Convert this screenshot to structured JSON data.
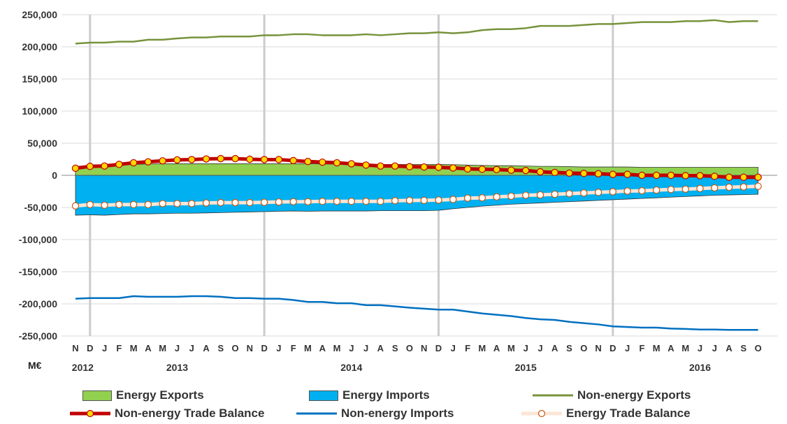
{
  "chart_data": {
    "type": "area",
    "y_unit": "M€",
    "ylim": [
      -250000,
      250000
    ],
    "yticks": [
      "250,000",
      "200,000",
      "150,000",
      "100,000",
      "50,000",
      "0",
      "-50,000",
      "-100,000",
      "-150,000",
      "-200,000",
      "-250,000"
    ],
    "month_labels": [
      "N",
      "D",
      "J",
      "F",
      "M",
      "A",
      "M",
      "J",
      "J",
      "A",
      "S",
      "O",
      "N",
      "D",
      "J",
      "F",
      "M",
      "A",
      "M",
      "J",
      "J",
      "A",
      "S",
      "O",
      "N",
      "D",
      "J",
      "F",
      "M",
      "A",
      "M",
      "J",
      "J",
      "A",
      "S",
      "O",
      "N",
      "D",
      "J",
      "F",
      "M",
      "A",
      "M",
      "J",
      "J",
      "A",
      "S",
      "O"
    ],
    "year_labels": [
      {
        "label": "2012",
        "month_index": 0.5
      },
      {
        "label": "2013",
        "month_index": 7
      },
      {
        "label": "2014",
        "month_index": 19
      },
      {
        "label": "2015",
        "month_index": 31
      },
      {
        "label": "2016",
        "month_index": 43
      }
    ],
    "year_separators_after_index": [
      1,
      13,
      25,
      37
    ],
    "grid": true,
    "legend_position": "bottom",
    "series": [
      {
        "name": "Energy Exports",
        "kind": "area",
        "color": "#92D050",
        "values": [
          14000,
          15000,
          15500,
          16000,
          17000,
          17500,
          18000,
          18000,
          18000,
          18000,
          18000,
          18000,
          18000,
          18000,
          18000,
          18000,
          18000,
          17500,
          17500,
          17500,
          17000,
          17000,
          17000,
          17000,
          17000,
          17000,
          16500,
          16000,
          15500,
          15000,
          15000,
          14500,
          14000,
          14000,
          13500,
          13000,
          13000,
          13000,
          13000,
          12500,
          12500,
          12500,
          12500,
          12500,
          12500,
          12500,
          12500,
          12500
        ]
      },
      {
        "name": "Energy Imports",
        "kind": "area",
        "color": "#00B0F0",
        "values": [
          -62000,
          -61500,
          -62000,
          -61000,
          -60000,
          -60000,
          -59500,
          -59000,
          -59000,
          -58500,
          -58000,
          -57500,
          -57000,
          -56500,
          -56000,
          -55500,
          -56000,
          -55500,
          -55500,
          -55500,
          -55500,
          -55000,
          -55000,
          -55000,
          -55000,
          -54500,
          -52000,
          -50000,
          -48000,
          -46500,
          -45000,
          -44000,
          -43000,
          -42000,
          -41000,
          -40000,
          -39000,
          -38000,
          -37000,
          -36000,
          -35000,
          -34000,
          -33000,
          -32000,
          -31000,
          -30500,
          -30000,
          -29500
        ]
      },
      {
        "name": "Non-energy Exports",
        "kind": "line",
        "color": "#77933C",
        "values": [
          205000,
          206500,
          206500,
          208000,
          208000,
          211000,
          211000,
          213000,
          214500,
          214500,
          216000,
          216000,
          216000,
          218000,
          218000,
          219500,
          219500,
          218000,
          218000,
          218000,
          219500,
          218000,
          219500,
          221000,
          221000,
          222500,
          221000,
          222500,
          226000,
          227500,
          227500,
          229000,
          232500,
          232500,
          232500,
          234000,
          235500,
          235500,
          237000,
          238500,
          238500,
          238500,
          240000,
          240000,
          241500,
          238500,
          240000,
          240000
        ]
      },
      {
        "name": "Non-energy Imports",
        "kind": "line",
        "color": "#0070C0",
        "values": [
          -192000,
          -191000,
          -191000,
          -191000,
          -188000,
          -189000,
          -189000,
          -189000,
          -188000,
          -188000,
          -189000,
          -191000,
          -191000,
          -192000,
          -192000,
          -194000,
          -197000,
          -197000,
          -199000,
          -199000,
          -202000,
          -202000,
          -204000,
          -206000,
          -207500,
          -209000,
          -209000,
          -212000,
          -215000,
          -217000,
          -219000,
          -222000,
          -224000,
          -225000,
          -228000,
          -230000,
          -232000,
          -235000,
          -236000,
          -237000,
          -237000,
          -238500,
          -239000,
          -240000,
          -240000,
          -240500,
          -240500,
          -240500
        ]
      },
      {
        "name": "Non-energy Trade Balance",
        "kind": "line-marker",
        "color": "#C00000",
        "marker_fill": "#FFD700",
        "values": [
          11000,
          14000,
          14500,
          17000,
          19500,
          21000,
          22500,
          24000,
          24500,
          25500,
          26000,
          26000,
          25000,
          24500,
          24500,
          23000,
          21500,
          20500,
          19500,
          18000,
          16000,
          14500,
          14500,
          13500,
          13000,
          12500,
          11500,
          10000,
          9500,
          9000,
          8000,
          7500,
          5500,
          4500,
          3500,
          3000,
          2500,
          1500,
          1500,
          0,
          0,
          0,
          -500,
          -500,
          -1500,
          -3000,
          -3000,
          -3000
        ]
      },
      {
        "name": "Energy Trade Balance",
        "kind": "line-marker",
        "color": "#FBE5D6",
        "marker_fill": "#FFFFFF",
        "marker_stroke": "#C55A11",
        "values": [
          -47500,
          -45500,
          -46500,
          -45500,
          -45500,
          -45500,
          -44000,
          -44000,
          -44000,
          -43000,
          -42500,
          -42500,
          -42500,
          -42000,
          -41500,
          -41000,
          -41000,
          -40500,
          -40500,
          -40500,
          -40500,
          -40500,
          -39500,
          -39000,
          -39000,
          -38500,
          -37500,
          -35500,
          -35000,
          -33500,
          -32500,
          -31000,
          -30500,
          -29500,
          -28500,
          -27500,
          -26500,
          -25500,
          -24500,
          -24000,
          -23000,
          -22000,
          -21500,
          -20500,
          -19500,
          -18500,
          -18000,
          -17000
        ]
      }
    ]
  }
}
